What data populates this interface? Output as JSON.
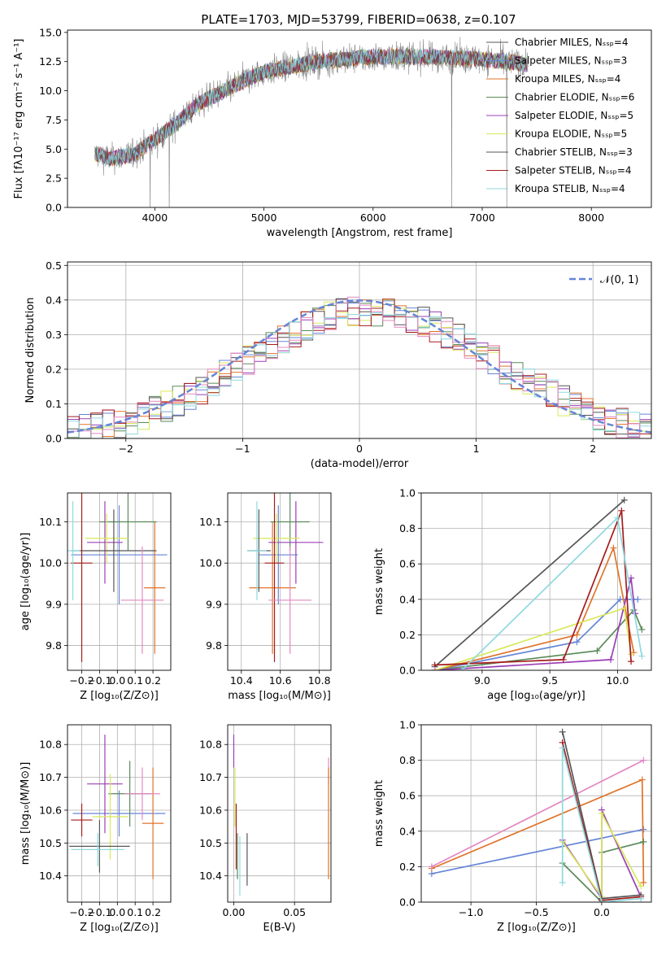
{
  "title": "PLATE=1703, MJD=53799, FIBERID=0638, z=0.107",
  "colors": {
    "c0": "#6585d6",
    "c1": "#e0732a",
    "c2": "#5a8a5a",
    "c3": "#9b3fb5",
    "c4": "#d9e85a",
    "c5": "#555555",
    "c6": "#a51c1c",
    "c7": "#8fd9de",
    "c8": "#e389c1",
    "spectrum": "#808080",
    "normal": "#6585d6"
  },
  "chart_data": [
    {
      "type": "line",
      "name": "spectrum",
      "xlabel": "wavelength [Angstrom, rest frame]",
      "ylabel": "Flux [fλ10⁻¹⁷ erg cm⁻² s⁻¹ A⁻¹]",
      "xlim": [
        3200,
        8550
      ],
      "ylim": [
        0,
        15.2
      ],
      "xticks": [
        4000,
        5000,
        6000,
        7000,
        8000
      ],
      "xtick_labels": [
        "4000",
        "5000",
        "6000",
        "7000",
        "8000"
      ],
      "yticks": [
        0,
        2.5,
        5,
        7.5,
        10,
        12.5,
        15
      ],
      "ytick_labels": [
        "0.0",
        "2.5",
        "5.0",
        "7.5",
        "10.0",
        "12.5",
        "15.0"
      ],
      "grid": false,
      "legend_position": "right",
      "spectrum_range": [
        3450,
        7420
      ],
      "continuum": [
        [
          3450,
          4.6
        ],
        [
          3600,
          4.2
        ],
        [
          3800,
          4.5
        ],
        [
          4000,
          5.8
        ],
        [
          4200,
          7.2
        ],
        [
          4400,
          8.9
        ],
        [
          4600,
          9.8
        ],
        [
          4800,
          10.8
        ],
        [
          5000,
          11.6
        ],
        [
          5200,
          12.0
        ],
        [
          5500,
          12.5
        ],
        [
          6000,
          12.9
        ],
        [
          6500,
          12.9
        ],
        [
          7000,
          12.7
        ],
        [
          7400,
          12.3
        ]
      ],
      "series": [
        {
          "name": "Chabrier MILES, Nₛₛₚ=4",
          "color": "c5"
        },
        {
          "name": "Salpeter MILES, Nₛₛₚ=3",
          "color": "c0"
        },
        {
          "name": "Kroupa MILES, Nₛₛₚ=4",
          "color": "c1"
        },
        {
          "name": "Chabrier ELODIE, Nₛₛₚ=6",
          "color": "c2"
        },
        {
          "name": "Salpeter ELODIE, Nₛₛₚ=5",
          "color": "c3"
        },
        {
          "name": "Kroupa ELODIE, Nₛₛₚ=5",
          "color": "c4"
        },
        {
          "name": "Chabrier STELIB, Nₛₛₚ=3",
          "color": "c5"
        },
        {
          "name": "Salpeter STELIB, Nₛₛₚ=4",
          "color": "c6"
        },
        {
          "name": "Kroupa STELIB, Nₛₛₚ=4",
          "color": "c7"
        }
      ]
    },
    {
      "type": "line",
      "name": "residuals",
      "xlabel": "(data-model)/error",
      "ylabel": "Normed distribution",
      "xlim": [
        -2.5,
        2.5
      ],
      "ylim": [
        0,
        0.51
      ],
      "xticks": [
        -2,
        -1,
        0,
        1,
        2
      ],
      "xtick_labels": [
        "−2",
        "−1",
        "0",
        "1",
        "2"
      ],
      "yticks": [
        0,
        0.1,
        0.2,
        0.3,
        0.4,
        0.5
      ],
      "ytick_labels": [
        "0.0",
        "0.1",
        "0.2",
        "0.3",
        "0.4",
        "0.5"
      ],
      "grid": true,
      "legend_position": "top-right",
      "legend": "𝒩(0, 1)",
      "bin_width": 0.1,
      "histograms": [
        "c0",
        "c1",
        "c2",
        "c3",
        "c4",
        "c5",
        "c6",
        "c7",
        "c8"
      ]
    },
    {
      "type": "scatter",
      "name": "age_vs_Z",
      "xlabel": "Z [log₁₀(Z/Z⊙)]",
      "ylabel": "age  [log₁₀(age/yr)]",
      "xlim": [
        -0.28,
        0.3
      ],
      "ylim": [
        9.74,
        10.17
      ],
      "xticks": [
        -0.2,
        -0.1,
        0,
        0.1,
        0.2
      ],
      "xtick_labels": [
        "−0.2",
        "−0.1",
        "0.0",
        "0.1",
        "0.2"
      ],
      "yticks": [
        9.8,
        9.9,
        10.0,
        10.1
      ],
      "ytick_labels": [
        "9.8",
        "9.9",
        "10.0",
        "10.1"
      ],
      "grid": true,
      "points": [
        {
          "c": "c0",
          "x": 0.01,
          "xe": 0.27,
          "y": 10.02,
          "ye": 0.12
        },
        {
          "c": "c1",
          "x": 0.21,
          "xe": 0.06,
          "y": 9.94,
          "ye": 0.16
        },
        {
          "c": "c2",
          "x": 0.06,
          "xe": 0.16,
          "y": 10.1,
          "ye": 0.07
        },
        {
          "c": "c3",
          "x": -0.07,
          "xe": 0.1,
          "y": 10.05,
          "ye": 0.1
        },
        {
          "c": "c4",
          "x": -0.06,
          "xe": 0.12,
          "y": 10.06,
          "ye": 0.06
        },
        {
          "c": "c5",
          "x": -0.02,
          "xe": 0.24,
          "y": 10.03,
          "ye": 0.1
        },
        {
          "c": "c6",
          "x": -0.2,
          "xe": 0.06,
          "y": 10.0,
          "ye": 0.24
        },
        {
          "c": "c7",
          "x": -0.25,
          "xe": 0.04,
          "y": 10.03,
          "ye": 0.12
        },
        {
          "c": "c8",
          "x": 0.14,
          "xe": 0.12,
          "y": 9.91,
          "ye": 0.13
        }
      ]
    },
    {
      "type": "scatter",
      "name": "age_vs_mass",
      "xlabel": "mass [log₁₀(M/M⊙)]",
      "ylabel": "",
      "xlim": [
        10.33,
        10.86
      ],
      "ylim": [
        9.74,
        10.17
      ],
      "xticks": [
        10.4,
        10.6,
        10.8
      ],
      "xtick_labels": [
        "10.4",
        "10.6",
        "10.8"
      ],
      "yticks": [
        9.8,
        9.9,
        10.0,
        10.1
      ],
      "ytick_labels": [
        "9.8",
        "9.9",
        "10.0",
        "10.1"
      ],
      "grid": true,
      "points": [
        {
          "c": "c0",
          "x": 10.59,
          "xe": 0.1,
          "y": 10.02,
          "ye": 0.12
        },
        {
          "c": "c1",
          "x": 10.56,
          "xe": 0.12,
          "y": 9.94,
          "ye": 0.16
        },
        {
          "c": "c2",
          "x": 10.65,
          "xe": 0.1,
          "y": 10.1,
          "ye": 0.07
        },
        {
          "c": "c3",
          "x": 10.68,
          "xe": 0.14,
          "y": 10.05,
          "ye": 0.1
        },
        {
          "c": "c4",
          "x": 10.58,
          "xe": 0.12,
          "y": 10.06,
          "ye": 0.06
        },
        {
          "c": "c5",
          "x": 10.49,
          "xe": 0.06,
          "y": 10.03,
          "ye": 0.1
        },
        {
          "c": "c6",
          "x": 10.57,
          "xe": 0.05,
          "y": 10.0,
          "ye": 0.24
        },
        {
          "c": "c7",
          "x": 10.48,
          "xe": 0.05,
          "y": 10.03,
          "ye": 0.12
        },
        {
          "c": "c8",
          "x": 10.65,
          "xe": 0.11,
          "y": 9.91,
          "ye": 0.13
        }
      ]
    },
    {
      "type": "line",
      "name": "mass_weight_vs_age",
      "xlabel": "age  [log₁₀(age/yr)]",
      "ylabel": "mass weight",
      "xlim": [
        8.55,
        10.25
      ],
      "ylim": [
        0,
        1
      ],
      "xticks": [
        9.0,
        9.5,
        10.0
      ],
      "xtick_labels": [
        "9.0",
        "9.5",
        "10.0"
      ],
      "yticks": [
        0,
        0.2,
        0.4,
        0.6,
        0.8,
        1.0
      ],
      "ytick_labels": [
        "0.0",
        "0.2",
        "0.4",
        "0.6",
        "0.8",
        "1.0"
      ],
      "grid": true,
      "series": [
        {
          "c": "c0",
          "pts": [
            [
              8.65,
              0.0
            ],
            [
              9.7,
              0.16
            ],
            [
              10.02,
              0.4
            ],
            [
              10.15,
              0.4
            ]
          ]
        },
        {
          "c": "c1",
          "pts": [
            [
              8.65,
              0.0
            ],
            [
              9.7,
              0.2
            ],
            [
              9.97,
              0.69
            ],
            [
              10.12,
              0.1
            ]
          ]
        },
        {
          "c": "c2",
          "pts": [
            [
              8.65,
              0.0
            ],
            [
              9.85,
              0.11
            ],
            [
              10.12,
              0.34
            ],
            [
              10.18,
              0.23
            ]
          ]
        },
        {
          "c": "c3",
          "pts": [
            [
              8.65,
              0.0
            ],
            [
              9.95,
              0.06
            ],
            [
              10.1,
              0.52
            ],
            [
              10.13,
              0.32
            ]
          ]
        },
        {
          "c": "c4",
          "pts": [
            [
              8.65,
              0.0
            ],
            [
              10.05,
              0.35
            ],
            [
              10.1,
              0.09
            ]
          ]
        },
        {
          "c": "c5",
          "pts": [
            [
              8.65,
              0.02
            ],
            [
              10.05,
              0.96
            ]
          ]
        },
        {
          "c": "c6",
          "pts": [
            [
              8.65,
              0.03
            ],
            [
              9.6,
              0.06
            ],
            [
              10.03,
              0.9
            ],
            [
              10.1,
              0.05
            ]
          ]
        },
        {
          "c": "c7",
          "pts": [
            [
              8.85,
              0.0
            ],
            [
              10.0,
              0.86
            ],
            [
              10.18,
              0.08
            ]
          ]
        },
        {
          "c": "c8",
          "pts": [
            [
              8.65,
              0.0
            ]
          ]
        }
      ]
    },
    {
      "type": "scatter",
      "name": "mass_vs_Z",
      "xlabel": "Z [log₁₀(Z/Z⊙)]",
      "ylabel": "mass [log₁₀(M/M⊙)]",
      "xlim": [
        -0.28,
        0.3
      ],
      "ylim": [
        10.32,
        10.86
      ],
      "xticks": [
        -0.2,
        -0.1,
        0,
        0.1,
        0.2
      ],
      "xtick_labels": [
        "−0.2",
        "−0.1",
        "0.0",
        "0.1",
        "0.2"
      ],
      "yticks": [
        10.4,
        10.5,
        10.6,
        10.7,
        10.8
      ],
      "ytick_labels": [
        "10.4",
        "10.5",
        "10.6",
        "10.7",
        "10.8"
      ],
      "grid": true,
      "points": [
        {
          "c": "c0",
          "x": 0.01,
          "xe": 0.26,
          "y": 10.59,
          "ye": 0.07
        },
        {
          "c": "c1",
          "x": 0.2,
          "xe": 0.06,
          "y": 10.56,
          "ye": 0.17
        },
        {
          "c": "c2",
          "x": 0.07,
          "xe": 0.12,
          "y": 10.65,
          "ye": 0.1
        },
        {
          "c": "c3",
          "x": -0.07,
          "xe": 0.1,
          "y": 10.68,
          "ye": 0.15
        },
        {
          "c": "c4",
          "x": -0.04,
          "xe": 0.1,
          "y": 10.58,
          "ye": 0.13
        },
        {
          "c": "c5",
          "x": -0.1,
          "xe": 0.17,
          "y": 10.49,
          "ye": 0.08
        },
        {
          "c": "c6",
          "x": -0.2,
          "xe": 0.06,
          "y": 10.57,
          "ye": 0.05
        },
        {
          "c": "c7",
          "x": -0.11,
          "xe": 0.15,
          "y": 10.48,
          "ye": 0.05
        },
        {
          "c": "c8",
          "x": 0.14,
          "xe": 0.1,
          "y": 10.65,
          "ye": 0.08
        }
      ]
    },
    {
      "type": "scatter",
      "name": "mass_vs_ebv",
      "xlabel": "E(B-V)",
      "ylabel": "",
      "xlim": [
        -0.005,
        0.08
      ],
      "ylim": [
        10.32,
        10.86
      ],
      "xticks": [
        0.0,
        0.05
      ],
      "xtick_labels": [
        "0.00",
        "0.05"
      ],
      "yticks": [
        10.4,
        10.5,
        10.6,
        10.7,
        10.8
      ],
      "ytick_labels": [
        "10.4",
        "10.5",
        "10.6",
        "10.7",
        "10.8"
      ],
      "grid": true,
      "points": [
        {
          "c": "c3",
          "x": 0.0,
          "y": 10.78,
          "ye": 0.05
        },
        {
          "c": "c4",
          "x": 0.001,
          "y": 10.64,
          "ye": 0.09
        },
        {
          "c": "c6",
          "x": 0.002,
          "y": 10.52,
          "ye": 0.1
        },
        {
          "c": "c2",
          "x": 0.003,
          "y": 10.46,
          "ye": 0.07
        },
        {
          "c": "c7",
          "x": 0.005,
          "y": 10.43,
          "ye": 0.09
        },
        {
          "c": "c5",
          "x": 0.011,
          "y": 10.45,
          "ye": 0.08
        },
        {
          "c": "c8",
          "x": 0.078,
          "y": 10.72,
          "ye": 0.04
        },
        {
          "c": "c1",
          "x": 0.078,
          "y": 10.56,
          "ye": 0.17
        }
      ]
    },
    {
      "type": "line",
      "name": "mass_weight_vs_Z",
      "xlabel": "Z [log₁₀(Z/Z⊙)]",
      "ylabel": "mass weight",
      "xlim": [
        -1.38,
        0.38
      ],
      "ylim": [
        0,
        1
      ],
      "xticks": [
        -1.0,
        -0.5,
        0.0
      ],
      "xtick_labels": [
        "−1.0",
        "−0.5",
        "0.0"
      ],
      "yticks": [
        0,
        0.2,
        0.4,
        0.6,
        0.8,
        1.0
      ],
      "ytick_labels": [
        "0.0",
        "0.2",
        "0.4",
        "0.6",
        "0.8",
        "1.0"
      ],
      "grid": true,
      "series": [
        {
          "c": "c0",
          "pts": [
            [
              -1.3,
              0.16
            ],
            [
              0.32,
              0.41
            ]
          ]
        },
        {
          "c": "c1",
          "pts": [
            [
              -1.3,
              0.19
            ],
            [
              0.31,
              0.69
            ],
            [
              0.32,
              0.11
            ]
          ]
        },
        {
          "c": "c8",
          "pts": [
            [
              -1.3,
              0.2
            ],
            [
              0.32,
              0.8
            ]
          ]
        },
        {
          "c": "c2",
          "pts": [
            [
              -0.3,
              0.22
            ],
            [
              0.0,
              0.0
            ],
            [
              0.0,
              0.28
            ],
            [
              0.32,
              0.34
            ]
          ]
        },
        {
          "c": "c3",
          "pts": [
            [
              -0.3,
              0.35
            ],
            [
              0.0,
              0.02
            ],
            [
              0.0,
              0.52
            ],
            [
              0.3,
              0.03
            ]
          ]
        },
        {
          "c": "c4",
          "pts": [
            [
              -0.3,
              0.34
            ],
            [
              0.0,
              0.03
            ],
            [
              0.0,
              0.5
            ],
            [
              0.3,
              0.09
            ]
          ]
        },
        {
          "c": "c5",
          "pts": [
            [
              -0.3,
              0.96
            ],
            [
              0.0,
              0.02
            ],
            [
              0.3,
              0.04
            ]
          ]
        },
        {
          "c": "c6",
          "pts": [
            [
              -0.3,
              0.9
            ],
            [
              0.0,
              0.01
            ],
            [
              0.3,
              0.03
            ]
          ]
        },
        {
          "c": "c7",
          "pts": [
            [
              -0.3,
              0.11
            ],
            [
              -0.3,
              0.87
            ],
            [
              0.0,
              0.0
            ],
            [
              0.3,
              0.02
            ]
          ]
        }
      ]
    }
  ]
}
